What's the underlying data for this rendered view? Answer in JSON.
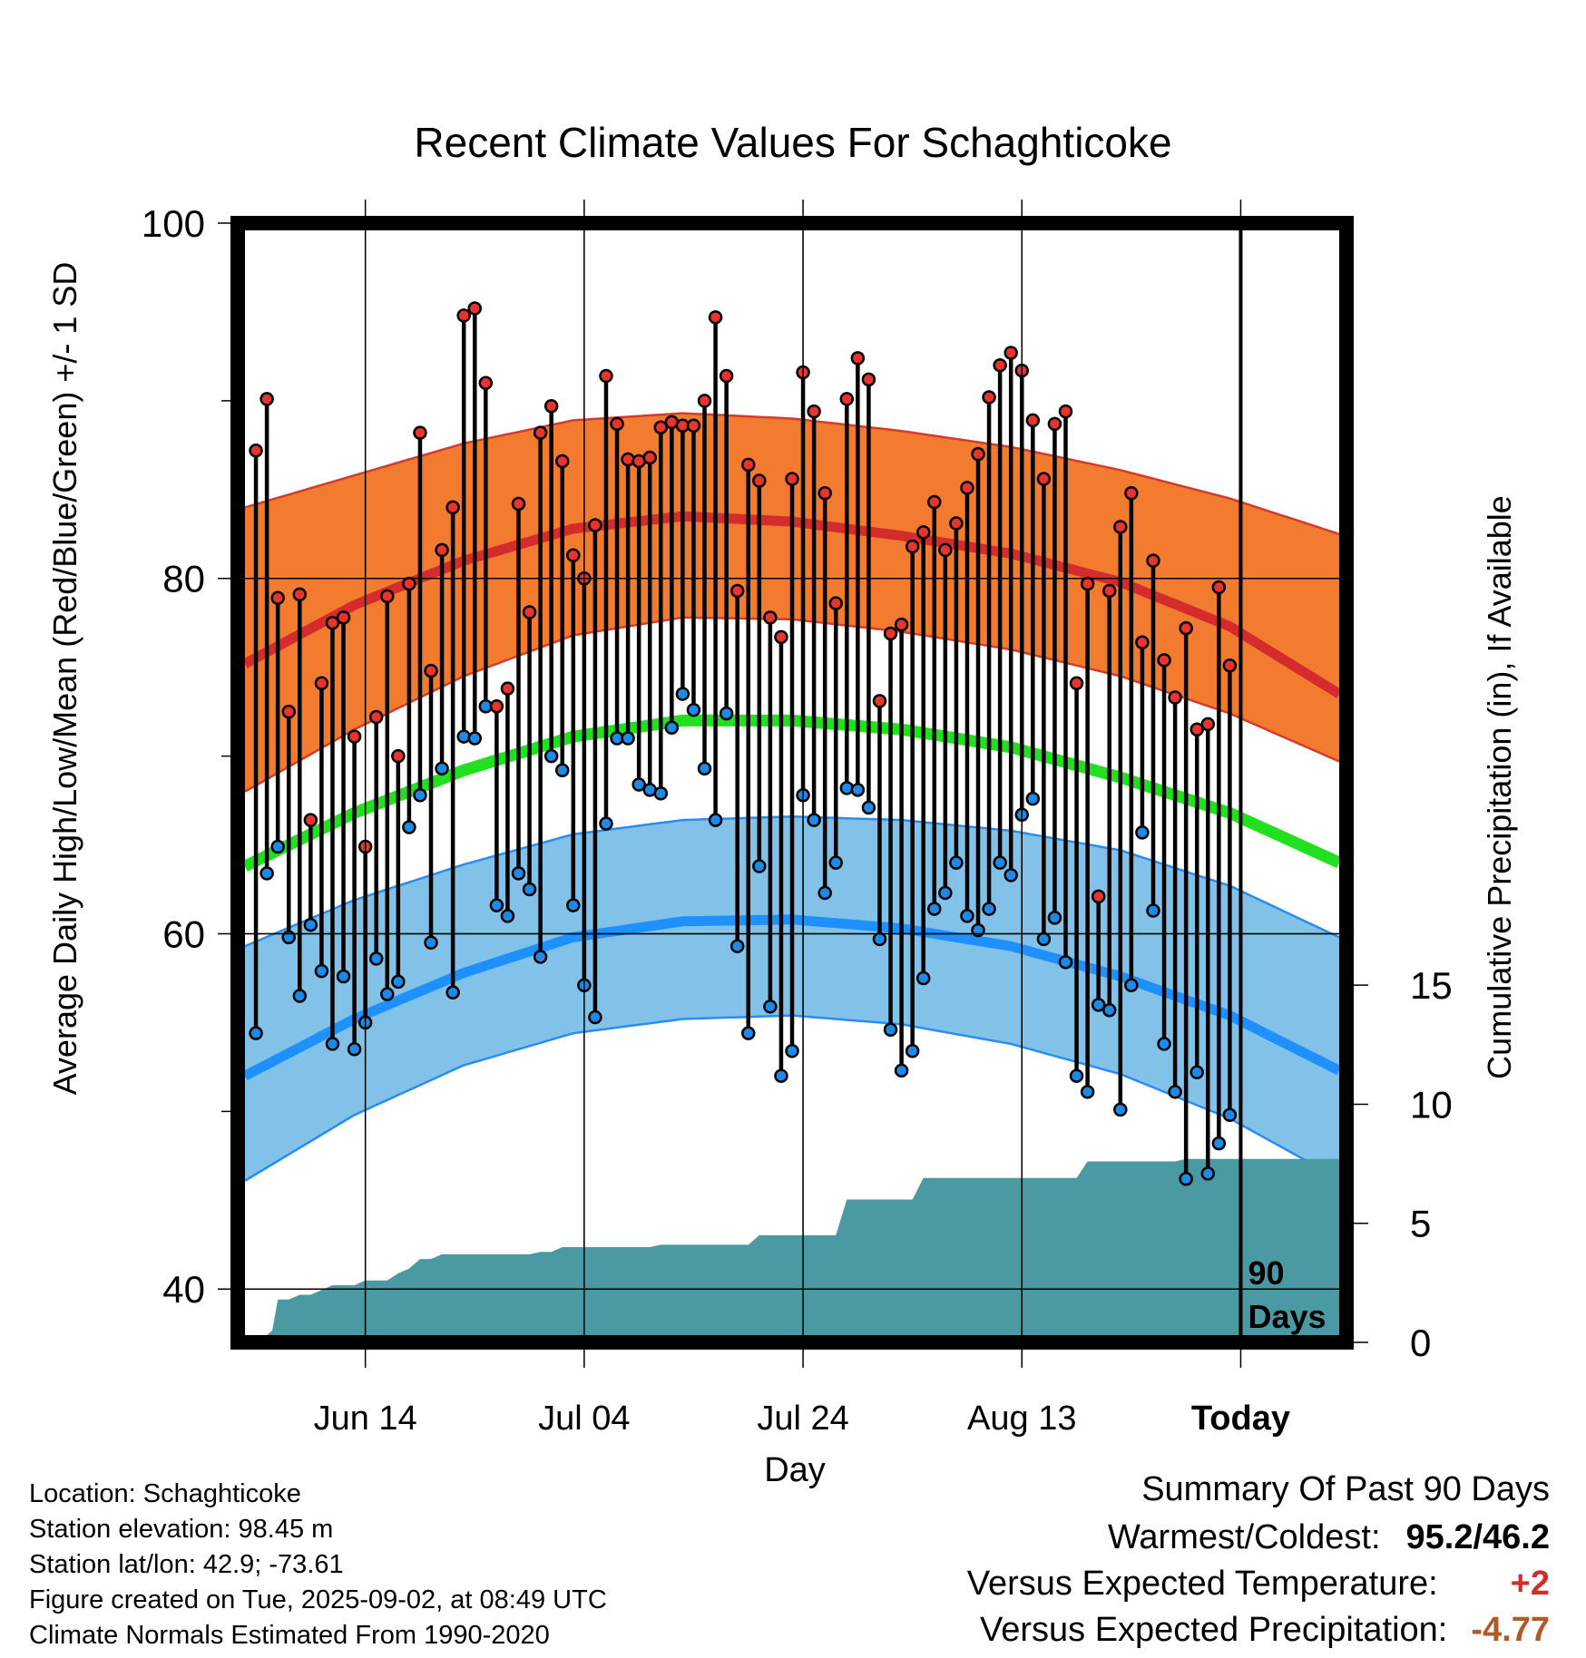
{
  "chart_data": {
    "type": "line",
    "title": "Recent Climate Values For Schaghticoke",
    "xlabel": "Day",
    "ylabel": "Average Daily High/Low/Mean (Red/Blue/Green) +/- 1 SD",
    "y2label": "Cumulative Precipitation (in), If Available",
    "ylim": [
      37,
      100
    ],
    "y_ticks": [
      "40",
      "60",
      "80",
      "100"
    ],
    "y2lim": [
      0,
      47
    ],
    "y2_ticks": [
      "0",
      "5",
      "10",
      "15"
    ],
    "x_ticks": [
      "Jun 14",
      "Jul 04",
      "Jul 24",
      "Aug 13",
      "Today"
    ],
    "x_tick_days": [
      11,
      31,
      51,
      71,
      91
    ],
    "days_range": [
      0,
      100
    ],
    "today_marker": {
      "day": 91,
      "label": "90 Days"
    },
    "normal_days": [
      0,
      10,
      20,
      30,
      40,
      50,
      60,
      70,
      80,
      90,
      100
    ],
    "normal_high": [
      75.2,
      78.5,
      81.0,
      82.8,
      83.5,
      83.2,
      82.4,
      81.4,
      79.8,
      77.3,
      73.5
    ],
    "normal_high_sd_upper": [
      84.0,
      85.8,
      87.6,
      88.9,
      89.3,
      89.0,
      88.3,
      87.4,
      86.1,
      84.5,
      82.5
    ],
    "normal_high_sd_lower": [
      68.0,
      71.5,
      74.5,
      76.8,
      77.8,
      77.7,
      77.0,
      76.0,
      74.5,
      72.4,
      69.7
    ],
    "normal_mean": [
      63.8,
      66.8,
      69.2,
      71.1,
      72.0,
      72.0,
      71.5,
      70.5,
      68.8,
      66.8,
      64.0
    ],
    "normal_low": [
      52.0,
      55.2,
      57.8,
      59.8,
      60.7,
      60.8,
      60.3,
      59.3,
      57.6,
      55.4,
      52.3
    ],
    "normal_low_sd_upper": [
      59.3,
      61.9,
      63.9,
      65.6,
      66.4,
      66.6,
      66.4,
      65.8,
      64.7,
      62.7,
      59.8
    ],
    "normal_low_sd_lower": [
      46.1,
      49.8,
      52.6,
      54.4,
      55.2,
      55.4,
      54.9,
      53.8,
      52.1,
      49.6,
      46.2
    ],
    "observed_high": [
      87.2,
      90.1,
      78.9,
      72.5,
      79.1,
      66.4,
      74.1,
      77.5,
      77.8,
      71.1,
      64.9,
      72.2,
      79.0,
      70.0,
      79.7,
      88.2,
      74.8,
      81.6,
      84.0,
      94.8,
      95.2,
      91.0,
      72.8,
      73.8,
      84.2,
      78.1,
      88.2,
      89.7,
      86.6,
      81.3,
      80.0,
      83.0,
      91.4,
      88.7,
      86.7,
      86.6,
      86.8,
      88.5,
      88.8,
      88.6,
      88.6,
      90.0,
      94.7,
      91.4,
      79.3,
      86.4,
      85.5,
      77.8,
      76.7,
      85.6,
      91.6,
      89.4,
      84.8,
      78.6,
      90.1,
      92.4,
      91.2,
      73.1,
      76.9,
      77.4,
      81.8,
      82.6,
      84.3,
      81.6,
      83.1,
      85.1,
      87.0,
      90.2,
      92.0,
      92.7,
      91.7,
      88.9,
      85.6,
      88.7,
      89.4,
      74.1,
      79.7,
      62.1,
      79.3,
      82.9,
      84.8,
      76.4,
      81.0,
      75.4,
      73.3,
      77.2,
      71.5,
      71.8,
      79.5,
      75.1
    ],
    "observed_low": [
      54.4,
      63.4,
      64.9,
      59.8,
      56.5,
      60.5,
      57.9,
      53.8,
      57.6,
      53.5,
      55.0,
      58.6,
      56.6,
      57.3,
      66.0,
      67.8,
      59.5,
      69.3,
      56.7,
      71.1,
      71.0,
      72.8,
      61.6,
      61.0,
      63.4,
      62.5,
      58.7,
      70.0,
      69.2,
      61.6,
      57.1,
      55.3,
      66.2,
      71.0,
      71.0,
      68.4,
      68.1,
      67.9,
      71.6,
      73.5,
      72.6,
      69.3,
      66.4,
      72.4,
      59.3,
      54.4,
      63.8,
      55.9,
      52.0,
      53.4,
      67.8,
      66.4,
      62.3,
      64.0,
      68.2,
      68.1,
      67.1,
      59.7,
      54.6,
      52.3,
      53.4,
      57.5,
      61.4,
      62.3,
      64.0,
      61.0,
      60.2,
      61.4,
      64.0,
      63.3,
      66.7,
      67.6,
      59.7,
      60.9,
      58.4,
      52.0,
      51.1,
      56.0,
      55.7,
      50.1,
      57.1,
      65.7,
      61.3,
      53.8,
      51.1,
      46.2,
      52.2,
      46.5,
      48.2,
      49.8
    ],
    "precip_days": [
      0,
      1.5,
      2.5,
      3,
      4,
      5,
      6,
      7,
      8,
      9,
      10,
      11,
      12,
      13,
      14,
      15,
      16,
      17,
      18,
      19,
      20,
      21,
      22,
      23,
      24,
      25,
      26,
      27,
      28,
      29,
      30,
      31,
      32,
      33,
      34,
      35,
      36,
      37,
      38,
      39,
      40,
      41,
      42,
      43,
      44,
      45,
      46,
      47,
      48,
      49,
      50,
      51,
      52,
      53,
      54,
      55,
      56,
      57,
      58,
      59,
      60,
      61,
      62,
      63,
      64,
      65,
      66,
      67,
      68,
      69,
      70,
      71,
      72,
      73,
      74,
      75,
      76,
      77,
      78,
      79,
      80,
      81,
      82,
      83,
      84,
      85,
      86,
      87,
      88,
      89,
      90,
      91,
      92,
      93,
      94,
      95,
      96,
      97,
      98,
      99,
      100
    ],
    "precip_cum": [
      0.0,
      0.1,
      0.5,
      1.8,
      1.8,
      2.0,
      2.0,
      2.2,
      2.4,
      2.4,
      2.4,
      2.6,
      2.6,
      2.6,
      2.9,
      3.1,
      3.5,
      3.5,
      3.7,
      3.7,
      3.7,
      3.7,
      3.7,
      3.7,
      3.7,
      3.7,
      3.7,
      3.8,
      3.8,
      4.0,
      4.0,
      4.0,
      4.0,
      4.0,
      4.0,
      4.0,
      4.0,
      4.0,
      4.1,
      4.1,
      4.1,
      4.1,
      4.1,
      4.1,
      4.1,
      4.1,
      4.1,
      4.5,
      4.5,
      4.5,
      4.5,
      4.5,
      4.5,
      4.5,
      4.5,
      6.0,
      6.0,
      6.0,
      6.0,
      6.0,
      6.0,
      6.0,
      6.9,
      6.9,
      6.9,
      6.9,
      6.9,
      6.9,
      6.9,
      6.9,
      6.9,
      6.9,
      6.9,
      6.9,
      6.9,
      6.9,
      6.9,
      7.6,
      7.6,
      7.6,
      7.6,
      7.6,
      7.6,
      7.6,
      7.6,
      7.6,
      7.7,
      7.7,
      7.7,
      7.7,
      7.7,
      7.7,
      7.7,
      7.7,
      7.7,
      7.7,
      7.7,
      7.7,
      7.7,
      7.7,
      7.7
    ],
    "colors": {
      "high_band": "#f37b2f",
      "high_line": "#d42c2c",
      "high_band_edge": "#d43b2c",
      "mean_line": "#22e01f",
      "low_band": "#83c2e8",
      "low_line": "#1e90ff",
      "low_band_edge": "#2a8cf0",
      "precip_fill": "#4a9aa4",
      "high_dot": "#e8342c",
      "low_dot": "#1e8ae8",
      "warm_value": "#d42c2c",
      "precip_value": "#b05a28"
    }
  },
  "info": {
    "location": "Location: Schaghticoke",
    "elevation": "Station elevation: 98.45 m",
    "latlon": "Station lat/lon: 42.9; -73.61",
    "created": "Figure created on Tue, 2025-09-02, at 08:49 UTC",
    "normals": "Climate Normals Estimated From 1990-2020"
  },
  "summary": {
    "title": "Summary Of Past 90 Days",
    "warm_cold_label": "Warmest/Coldest:",
    "warm_cold_value": "95.2/46.2",
    "temp_label": "Versus Expected Temperature:",
    "temp_value": "+2",
    "precip_label": "Versus Expected Precipitation:",
    "precip_value": "-4.77"
  }
}
